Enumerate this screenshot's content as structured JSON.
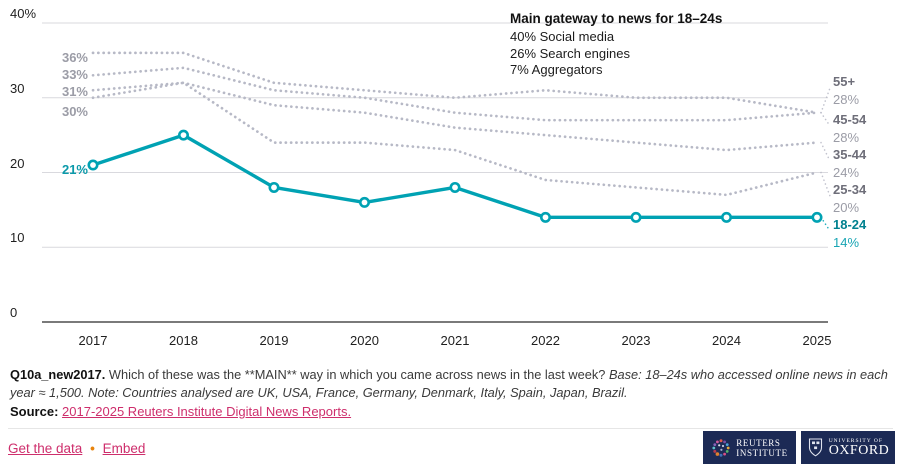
{
  "colors": {
    "accent": "#00a2b3",
    "accent_dark": "#00818f",
    "muted_line": "#b7b9c6",
    "link_pink": "#ce2e6c",
    "bullet_orange": "#e8830c",
    "logo_navy": "#1c2a55",
    "grid": "#d9d9de"
  },
  "chart_data": {
    "type": "line",
    "x": [
      2017,
      2018,
      2019,
      2020,
      2021,
      2022,
      2023,
      2024,
      2025
    ],
    "ylim": [
      0,
      40
    ],
    "grid": true,
    "legend_position": "right",
    "y_ticks": [
      {
        "v": 40,
        "label": "40%"
      },
      {
        "v": 30,
        "label": "30"
      },
      {
        "v": 20,
        "label": "20"
      },
      {
        "v": 10,
        "label": "10"
      },
      {
        "v": 0,
        "label": "0"
      }
    ],
    "series": [
      {
        "name": "55+",
        "style": "dotted",
        "accent": false,
        "values": [
          36,
          36,
          32,
          31,
          30,
          31,
          30,
          30,
          28
        ],
        "start_label": "36%",
        "end_label": "28%"
      },
      {
        "name": "45-54",
        "style": "dotted",
        "accent": false,
        "values": [
          33,
          34,
          31,
          30,
          28,
          27,
          27,
          27,
          28
        ],
        "start_label": "33%",
        "end_label": "28%"
      },
      {
        "name": "35-44",
        "style": "dotted",
        "accent": false,
        "values": [
          31,
          32,
          29,
          28,
          26,
          25,
          24,
          23,
          24
        ],
        "start_label": "31%",
        "end_label": "24%"
      },
      {
        "name": "25-34",
        "style": "dotted",
        "accent": false,
        "values": [
          30,
          32,
          24,
          24,
          23,
          19,
          18,
          17,
          20
        ],
        "start_label": "30%",
        "end_label": "20%"
      },
      {
        "name": "18-24",
        "style": "solid",
        "accent": true,
        "values": [
          21,
          25,
          18,
          16,
          18,
          14,
          14,
          14,
          14
        ],
        "start_label": "21%",
        "end_label": "14%"
      }
    ]
  },
  "annotation": {
    "title": "Main gateway to news for 18–24s",
    "lines": [
      "40% Social media",
      "26% Search engines",
      "7% Aggregators"
    ]
  },
  "footer": {
    "q_code": "Q10a_new2017.",
    "q_text": "Which of these was the **MAIN** way in which you came across news in the last week?",
    "q_italic": "Base: 18–24s who accessed online news in each year ≈ 1,500. Note: Countries analysed are UK, USA, France, Germany, Denmark, Italy, Spain, Japan, Brazil.",
    "source_label": "Source:",
    "source_link": "2017-2025 Reuters Institute Digital News Reports."
  },
  "links": {
    "get_data": "Get the data",
    "separator": "•",
    "embed": "Embed"
  },
  "logos": {
    "reuters_line1": "REUTERS",
    "reuters_line2": "INSTITUTE",
    "oxford_small": "UNIVERSITY OF",
    "oxford_big": "OXFORD"
  }
}
